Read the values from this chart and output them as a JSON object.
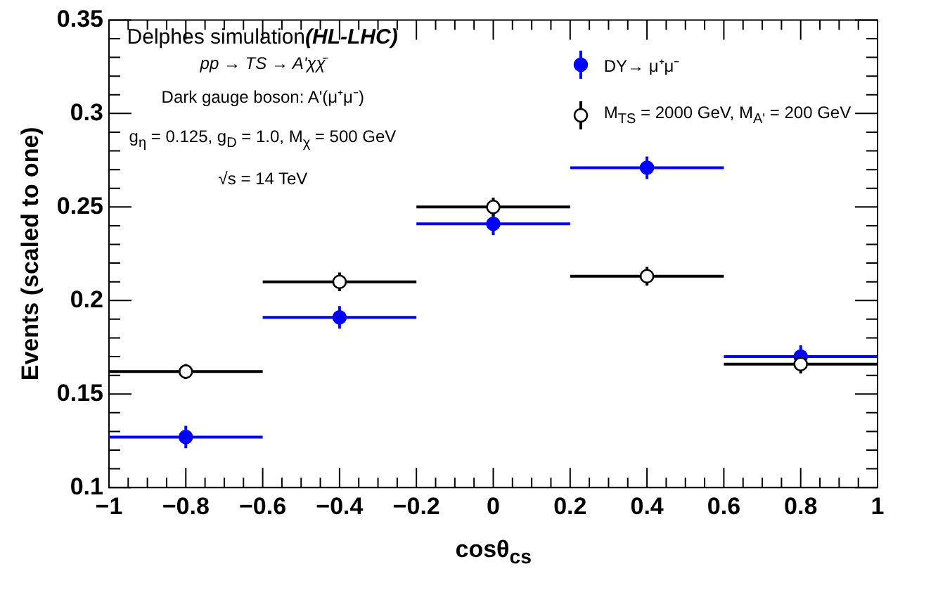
{
  "chart_data": {
    "type": "scatter",
    "xlabel": "cosθ$_{cs}$",
    "ylabel": "Events (scaled to one)",
    "annotations": [
      "Delphes simulation",
      "(HL-LHC)",
      "pp → TS → A'χχ̄",
      "Dark gauge boson: A'(μ⁺μ⁻)",
      "g$_{η}$ = 0.125, g$_{D}$ = 1.0, M$_{χ}$ = 500 GeV",
      "√s = 14 TeV"
    ],
    "series": [
      {
        "name": "DY→ μ⁺μ⁻",
        "color": "#0000ff",
        "x": [
          -0.8,
          -0.4,
          0,
          0.4,
          0.8
        ],
        "values": [
          0.127,
          0.191,
          0.241,
          0.271,
          0.17
        ],
        "errors": [
          0.006,
          0.006,
          0.006,
          0.006,
          0.006
        ],
        "xerrors": [
          0.2,
          0.2,
          0.2,
          0.2,
          0.2
        ]
      },
      {
        "name": "M$_{TS}$ = 2000 GeV, M$_{A'}$ = 200 GeV",
        "color": "#000000",
        "x": [
          -0.8,
          -0.4,
          0,
          0.4,
          0.8
        ],
        "values": [
          0.162,
          0.21,
          0.25,
          0.213,
          0.166
        ],
        "errors": [
          0.004,
          0.005,
          0.005,
          0.005,
          0.005
        ],
        "xerrors": [
          0.2,
          0.2,
          0.2,
          0.2,
          0.2
        ]
      }
    ],
    "xlim": [
      -1,
      1
    ],
    "xticks": [
      -1,
      -0.8,
      -0.6,
      -0.4,
      -0.2,
      0,
      0.2,
      0.4,
      0.6,
      0.8,
      1
    ],
    "ylim": [
      0.1,
      0.35
    ],
    "yticks": [
      0.1,
      0.15,
      0.2,
      0.25,
      0.3,
      0.35
    ],
    "marker": "circle",
    "legend": "top right",
    "grid": false
  }
}
